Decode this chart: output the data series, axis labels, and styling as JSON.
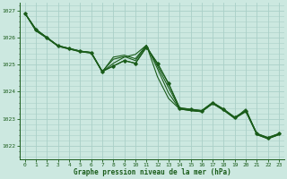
{
  "title": "Graphe pression niveau de la mer (hPa)",
  "background_color": "#cce8e0",
  "grid_color": "#aad0c8",
  "line_color": "#1a5c1a",
  "xlim": [
    -0.5,
    23.5
  ],
  "ylim": [
    1021.5,
    1027.3
  ],
  "yticks": [
    1022,
    1023,
    1024,
    1025,
    1026,
    1027
  ],
  "xticks": [
    0,
    1,
    2,
    3,
    4,
    5,
    6,
    7,
    8,
    9,
    10,
    11,
    12,
    13,
    14,
    15,
    16,
    17,
    18,
    19,
    20,
    21,
    22,
    23
  ],
  "series": [
    [
      1026.9,
      1026.3,
      1026.0,
      1025.7,
      1025.6,
      1025.5,
      1025.45,
      1024.75,
      1024.95,
      1025.15,
      1025.05,
      1025.65,
      1025.05,
      1024.3,
      1023.4,
      1023.35,
      1023.3,
      1023.6,
      1023.35,
      1023.05,
      1023.3,
      1022.45,
      1022.3,
      1022.45
    ],
    [
      1026.9,
      1026.3,
      1026.0,
      1025.7,
      1025.6,
      1025.5,
      1025.45,
      1024.75,
      1025.2,
      1025.3,
      1025.15,
      1025.7,
      1024.95,
      1024.15,
      1023.38,
      1023.32,
      1023.28,
      1023.58,
      1023.33,
      1023.03,
      1023.28,
      1022.43,
      1022.28,
      1022.43
    ],
    [
      1026.9,
      1026.25,
      1025.98,
      1025.68,
      1025.58,
      1025.48,
      1025.43,
      1024.73,
      1025.28,
      1025.35,
      1025.22,
      1025.72,
      1024.85,
      1023.95,
      1023.36,
      1023.3,
      1023.26,
      1023.56,
      1023.31,
      1023.01,
      1023.26,
      1022.41,
      1022.26,
      1022.41
    ],
    [
      1026.9,
      1026.25,
      1025.98,
      1025.68,
      1025.58,
      1025.48,
      1025.43,
      1024.73,
      1025.05,
      1025.28,
      1025.38,
      1025.72,
      1024.55,
      1023.75,
      1023.36,
      1023.3,
      1023.26,
      1023.56,
      1023.31,
      1023.01,
      1023.36,
      1022.41,
      1022.26,
      1022.41
    ]
  ],
  "main_series": [
    1026.9,
    1026.3,
    1026.0,
    1025.7,
    1025.6,
    1025.5,
    1025.45,
    1024.75,
    1024.95,
    1025.15,
    1025.05,
    1025.65,
    1025.05,
    1024.3,
    1023.4,
    1023.35,
    1023.3,
    1023.6,
    1023.35,
    1023.05,
    1023.3,
    1022.45,
    1022.3,
    1022.45
  ]
}
